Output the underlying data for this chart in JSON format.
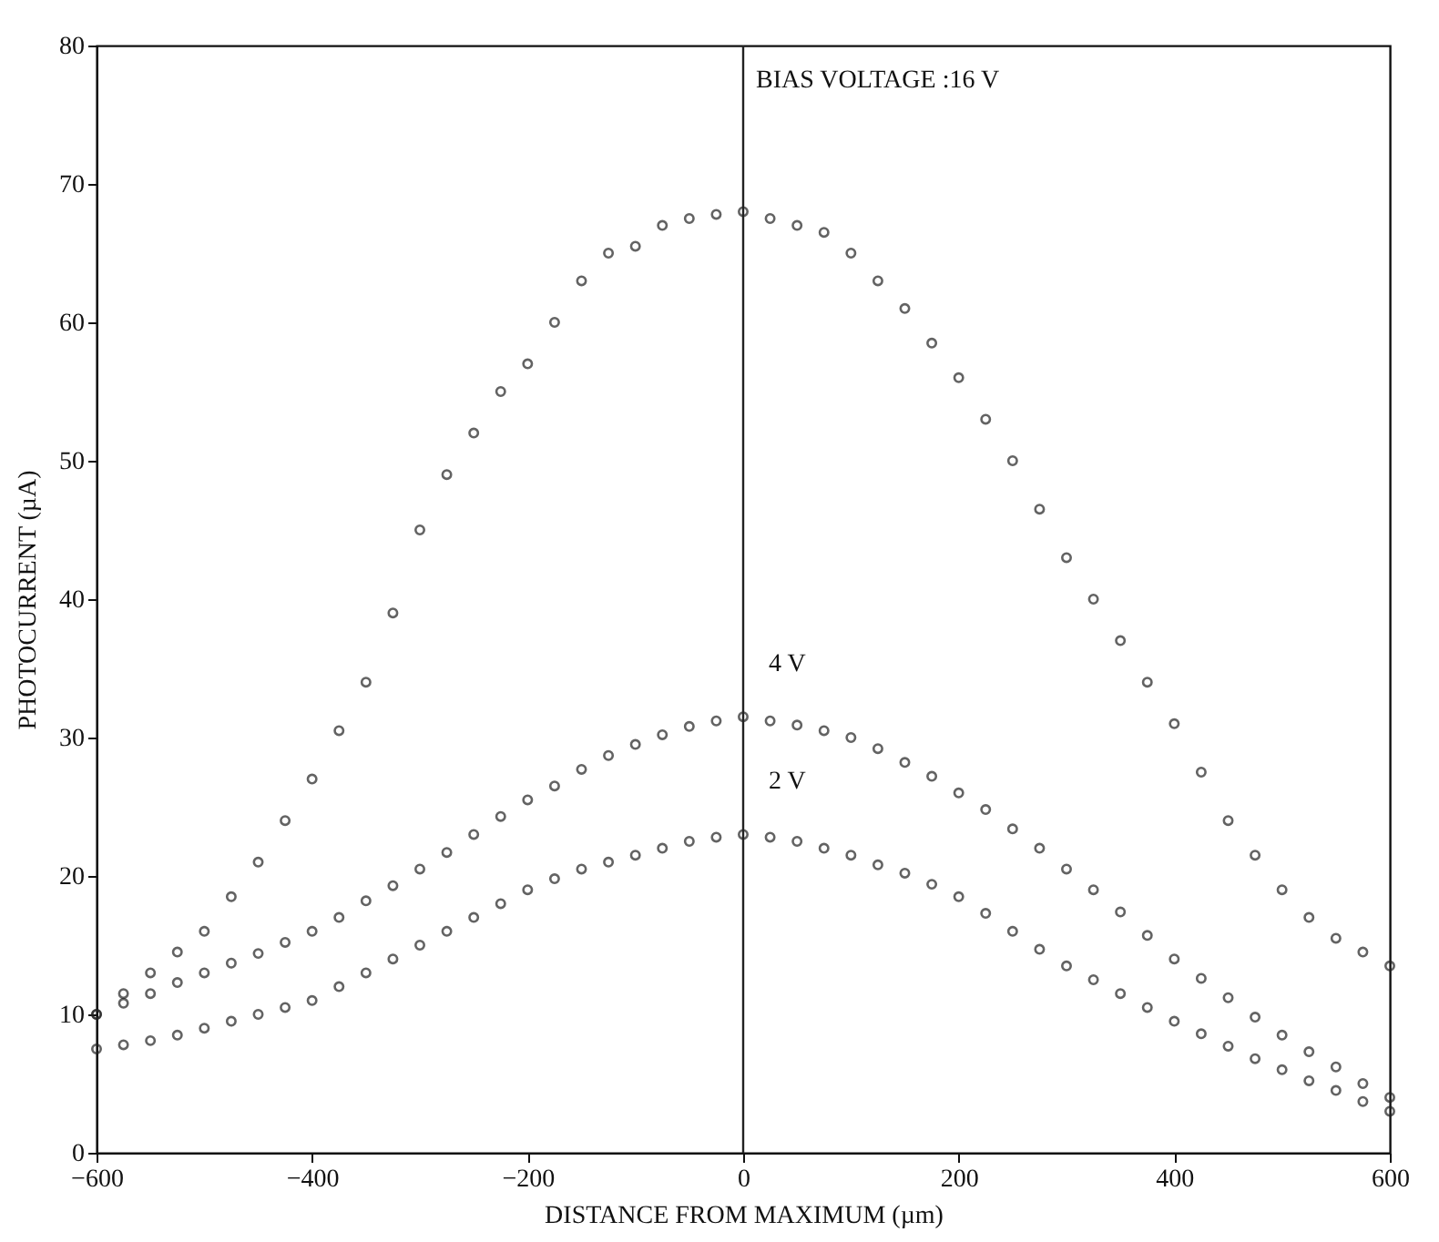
{
  "chart_data": {
    "type": "scatter",
    "xlabel": "DISTANCE FROM MAXIMUM (µm)",
    "ylabel": "PHOTOCURRENT (µA)",
    "x": [
      -600,
      -575,
      -550,
      -525,
      -500,
      -475,
      -450,
      -425,
      -400,
      -375,
      -350,
      -325,
      -300,
      -275,
      -250,
      -225,
      -200,
      -175,
      -150,
      -125,
      -100,
      -75,
      -50,
      -25,
      0,
      25,
      50,
      75,
      100,
      125,
      150,
      175,
      200,
      225,
      250,
      275,
      300,
      325,
      350,
      375,
      400,
      425,
      450,
      475,
      500,
      525,
      550,
      575,
      600
    ],
    "series": [
      {
        "color": "#222222",
        "values": [
          10,
          11.5,
          13,
          14.5,
          16,
          18.5,
          21,
          24,
          27,
          30.5,
          34,
          39,
          45,
          49,
          52,
          55,
          57,
          60,
          63,
          65,
          65.5,
          67,
          67.5,
          67.8,
          68,
          67.5,
          67,
          66.5,
          65,
          63,
          61,
          58.5,
          56,
          53,
          50,
          46.5,
          43,
          40,
          37,
          34,
          31,
          27.5,
          24,
          21.5,
          19,
          17,
          15.5,
          14.5,
          13.5
        ]
      },
      {
        "name": "4 V",
        "color": "#222222",
        "values": [
          10,
          10.8,
          11.5,
          12.3,
          13,
          13.7,
          14.4,
          15.2,
          16,
          17,
          18.2,
          19.3,
          20.5,
          21.7,
          23,
          24.3,
          25.5,
          26.5,
          27.7,
          28.7,
          29.5,
          30.2,
          30.8,
          31.2,
          31.5,
          31.2,
          30.9,
          30.5,
          30,
          29.2,
          28.2,
          27.2,
          26,
          24.8,
          23.4,
          22,
          20.5,
          19,
          17.4,
          15.7,
          14,
          12.6,
          11.2,
          9.8,
          8.5,
          7.3,
          6.2,
          5,
          4
        ]
      },
      {
        "name": "2 V",
        "color": "#222222",
        "values": [
          7.5,
          7.8,
          8.1,
          8.5,
          9,
          9.5,
          10,
          10.5,
          11,
          12,
          13,
          14,
          15,
          16,
          17,
          18,
          19,
          19.8,
          20.5,
          21,
          21.5,
          22,
          22.5,
          22.8,
          23,
          22.8,
          22.5,
          22,
          21.5,
          20.8,
          20.2,
          19.4,
          18.5,
          17.3,
          16,
          14.7,
          13.5,
          12.5,
          11.5,
          10.5,
          9.5,
          8.6,
          7.7,
          6.8,
          6,
          5.2,
          4.5,
          3.7,
          3
        ]
      }
    ],
    "xlim": [
      -600,
      600
    ],
    "xticks": [
      -600,
      -400,
      -200,
      0,
      200,
      400,
      600
    ],
    "ylim": [
      0,
      80
    ],
    "yticks": [
      0,
      10,
      20,
      30,
      40,
      50,
      60,
      70,
      80
    ],
    "marker": "circle",
    "ref_lines": [
      {
        "axis": "x",
        "value": 0,
        "color": "#222222"
      }
    ],
    "annotations": [
      "BIAS VOLTAGE :16 V"
    ]
  }
}
